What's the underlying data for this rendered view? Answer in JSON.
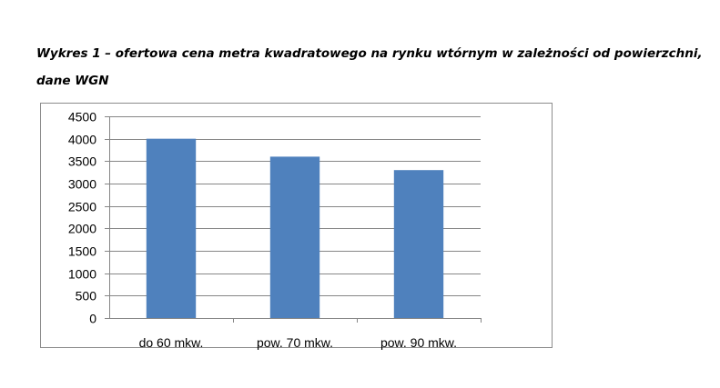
{
  "caption": {
    "line1": "Wykres 1 – ofertowa cena metra kwadratowego na rynku wtórnym w zależności od powierzchni,",
    "line2": "dane WGN"
  },
  "chart_data": {
    "type": "bar",
    "categories": [
      "do 60 mkw.",
      "pow. 70 mkw.",
      "pow. 90 mkw."
    ],
    "values": [
      4000,
      3600,
      3300
    ],
    "ylim": [
      0,
      4500
    ],
    "yticks": [
      0,
      500,
      1000,
      1500,
      2000,
      2500,
      3000,
      3500,
      4000,
      4500
    ],
    "grid": true,
    "legend": "none",
    "bar_color": "#4f81bd",
    "grid_color": "#868686",
    "axis_color": "#868686"
  }
}
